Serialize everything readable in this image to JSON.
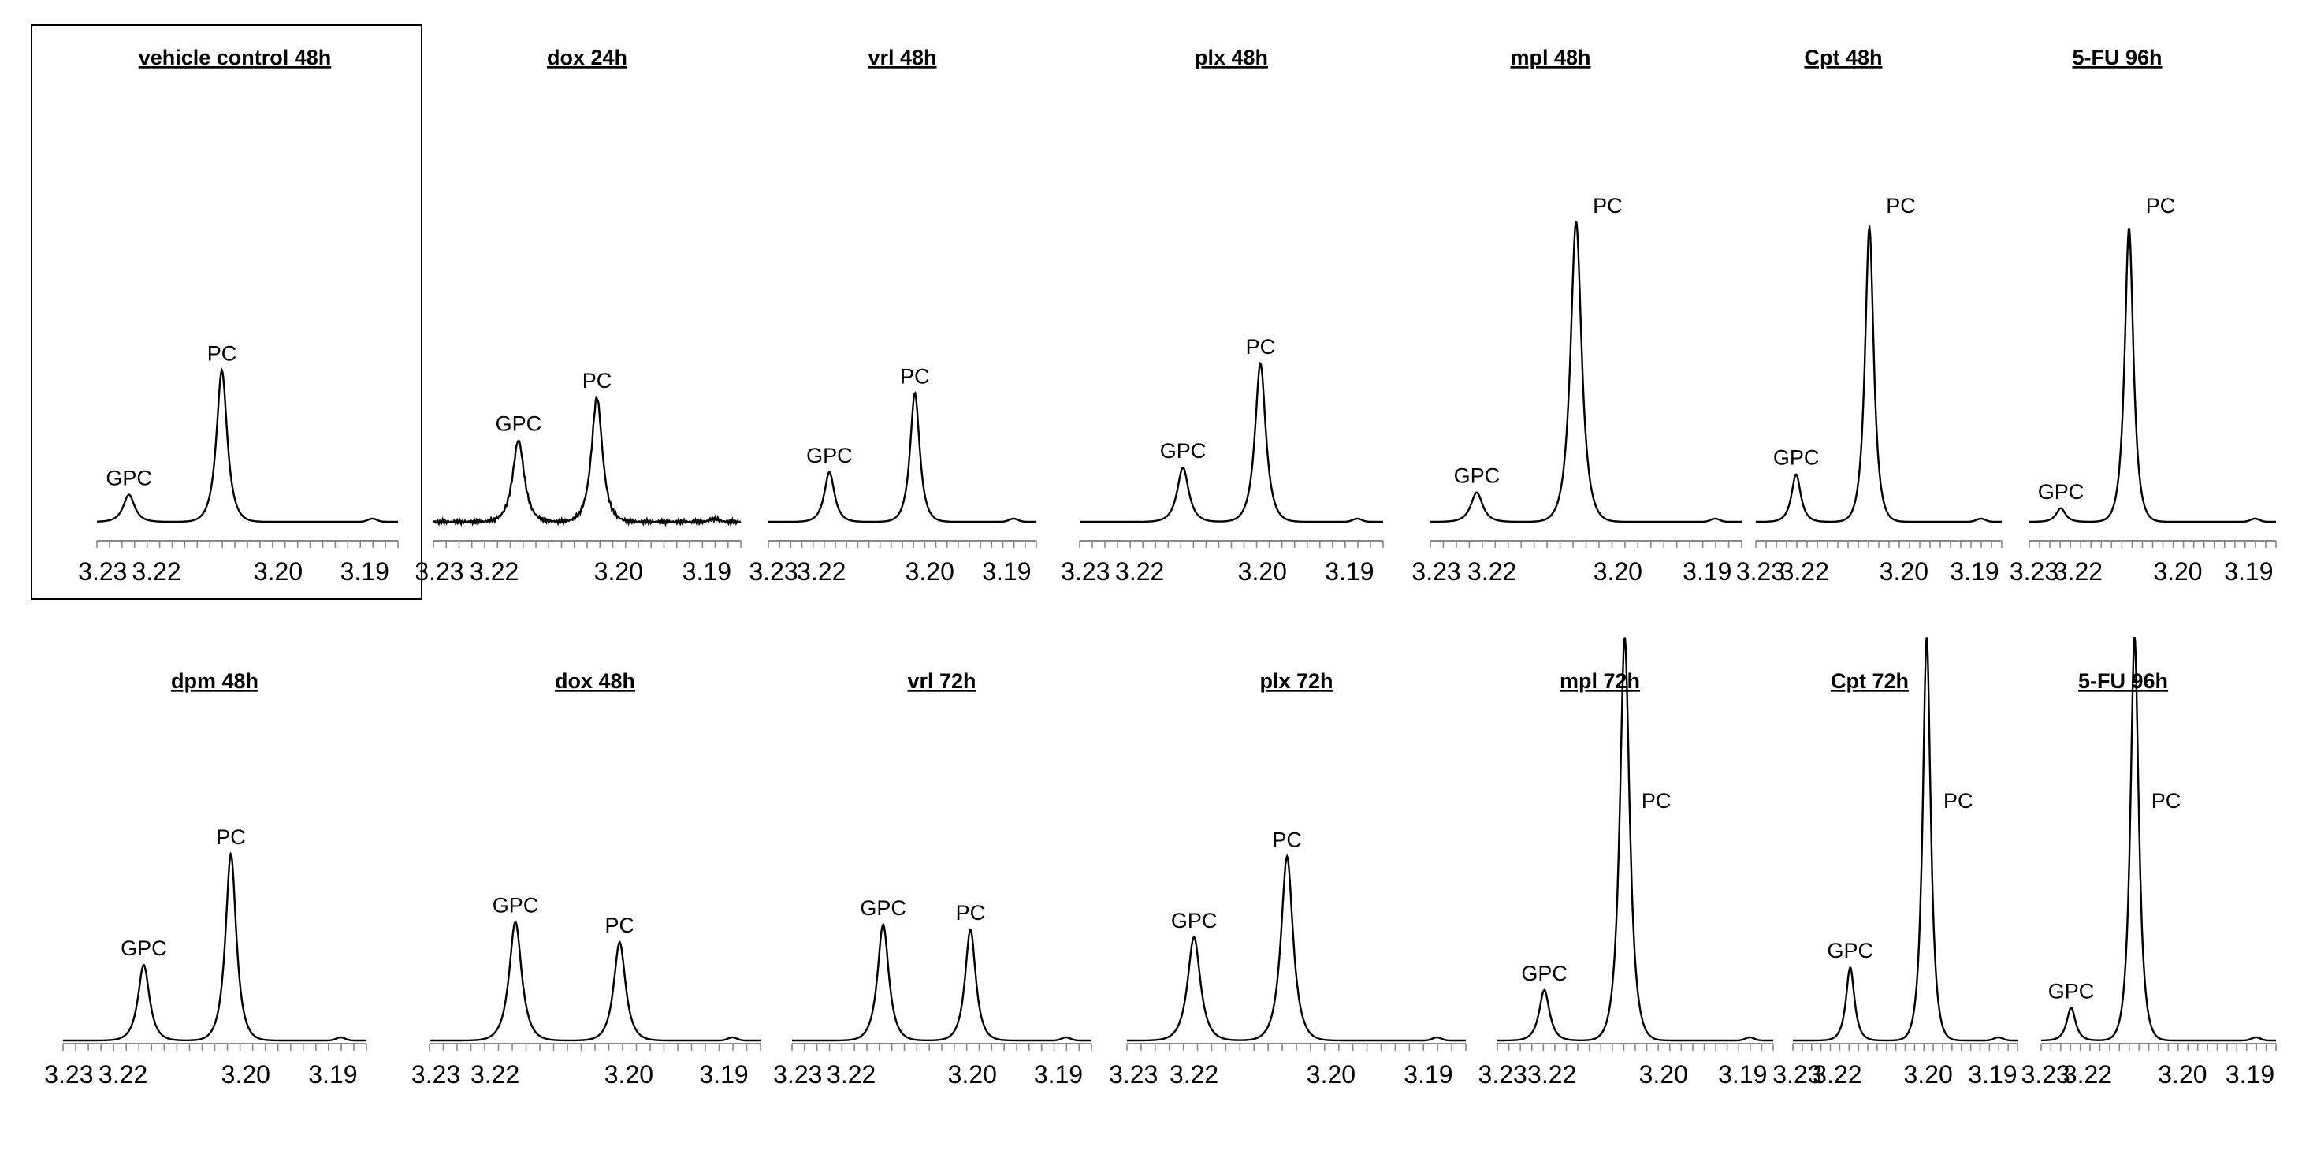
{
  "chart_data": [
    {
      "type": "line",
      "title": "vehicle control 48h",
      "row": 0,
      "col": 0,
      "boxed": true,
      "x_ticks": [
        "3.23",
        "3.22",
        "3.20",
        "3.19"
      ],
      "peaks": [
        {
          "label": "GPC",
          "ppm": 3.2255,
          "height": 0.12
        },
        {
          "label": "PC",
          "ppm": 3.211,
          "height": 0.67
        }
      ],
      "ymax": 1.0
    },
    {
      "type": "line",
      "title": "dox 24h",
      "row": 0,
      "col": 1,
      "x_ticks": [
        "3.23",
        "3.22",
        "3.20",
        "3.19"
      ],
      "peaks": [
        {
          "label": "GPC",
          "ppm": 3.2175,
          "height": 0.36
        },
        {
          "label": "PC",
          "ppm": 3.2055,
          "height": 0.55
        }
      ],
      "ymax": 1.0,
      "noisy": true
    },
    {
      "type": "line",
      "title": "vrl 48h",
      "row": 0,
      "col": 2,
      "x_ticks": [
        "3.23",
        "3.22",
        "3.20",
        "3.19"
      ],
      "peaks": [
        {
          "label": "GPC",
          "ppm": 3.2198,
          "height": 0.22
        },
        {
          "label": "PC",
          "ppm": 3.2048,
          "height": 0.57
        }
      ],
      "ymax": 1.0
    },
    {
      "type": "line",
      "title": "plx 48h",
      "row": 0,
      "col": 3,
      "x_ticks": [
        "3.23",
        "3.22",
        "3.20",
        "3.19"
      ],
      "peaks": [
        {
          "label": "GPC",
          "ppm": 3.2145,
          "height": 0.24
        },
        {
          "label": "PC",
          "ppm": 3.2025,
          "height": 0.7
        }
      ],
      "ymax": 1.0
    },
    {
      "type": "line",
      "title": "mpl 48h",
      "row": 0,
      "col": 4,
      "x_ticks": [
        "3.23",
        "3.22",
        "3.20",
        "3.19"
      ],
      "peaks": [
        {
          "label": "GPC",
          "ppm": 3.2235,
          "height": 0.13
        },
        {
          "label": "PC",
          "ppm": 3.2085,
          "height": 1.33
        }
      ],
      "ymax": 1.0
    },
    {
      "type": "line",
      "title": "Cpt 48h",
      "row": 0,
      "col": 5,
      "x_ticks": [
        "3.23",
        "3.22",
        "3.20",
        "3.19"
      ],
      "peaks": [
        {
          "label": "GPC",
          "ppm": 3.2228,
          "height": 0.21
        },
        {
          "label": "PC",
          "ppm": 3.2088,
          "height": 1.3
        }
      ],
      "ymax": 1.0
    },
    {
      "type": "line",
      "title": "5-FU 96h",
      "row": 0,
      "col": 6,
      "x_ticks": [
        "3.23",
        "3.22",
        "3.20",
        "3.19"
      ],
      "peaks": [
        {
          "label": "GPC",
          "ppm": 3.2245,
          "height": 0.06
        },
        {
          "label": "PC",
          "ppm": 3.2115,
          "height": 1.3
        }
      ],
      "ymax": 1.0
    },
    {
      "type": "line",
      "title": "dpm 48h",
      "row": 1,
      "col": 0,
      "x_ticks": [
        "3.23",
        "3.22",
        "3.20",
        "3.19"
      ],
      "peaks": [
        {
          "label": "GPC",
          "ppm": 3.218,
          "height": 0.3
        },
        {
          "label": "PC",
          "ppm": 3.2045,
          "height": 0.74
        }
      ],
      "ymax": 1.0
    },
    {
      "type": "line",
      "title": "dox 48h",
      "row": 1,
      "col": 1,
      "x_ticks": [
        "3.23",
        "3.22",
        "3.20",
        "3.19"
      ],
      "peaks": [
        {
          "label": "GPC",
          "ppm": 3.2183,
          "height": 0.47
        },
        {
          "label": "PC",
          "ppm": 3.2035,
          "height": 0.39
        }
      ],
      "ymax": 1.0
    },
    {
      "type": "line",
      "title": "vrl 72h",
      "row": 1,
      "col": 2,
      "x_ticks": [
        "3.23",
        "3.22",
        "3.20",
        "3.19"
      ],
      "peaks": [
        {
          "label": "GPC",
          "ppm": 3.2162,
          "height": 0.46
        },
        {
          "label": "PC",
          "ppm": 3.2025,
          "height": 0.44
        }
      ],
      "ymax": 1.0
    },
    {
      "type": "line",
      "title": "plx 72h",
      "row": 1,
      "col": 3,
      "x_ticks": [
        "3.23",
        "3.22",
        "3.20",
        "3.19"
      ],
      "peaks": [
        {
          "label": "GPC",
          "ppm": 3.2212,
          "height": 0.41
        },
        {
          "label": "PC",
          "ppm": 3.2083,
          "height": 0.73
        }
      ],
      "ymax": 1.0
    },
    {
      "type": "line",
      "title": "mpl 72h",
      "row": 1,
      "col": 4,
      "x_ticks": [
        "3.23",
        "3.22",
        "3.20",
        "3.19"
      ],
      "peaks": [
        {
          "label": "GPC",
          "ppm": 3.2225,
          "height": 0.2
        },
        {
          "label": "PC",
          "ppm": 3.2088,
          "height": 1.6
        }
      ],
      "ymax": 1.0
    },
    {
      "type": "line",
      "title": "Cpt 72h",
      "row": 1,
      "col": 5,
      "x_ticks": [
        "3.23",
        "3.22",
        "3.20",
        "3.19"
      ],
      "peaks": [
        {
          "label": "GPC",
          "ppm": 3.2185,
          "height": 0.29
        },
        {
          "label": "PC",
          "ppm": 3.2025,
          "height": 1.6
        }
      ],
      "ymax": 1.0
    },
    {
      "type": "line",
      "title": "5-FU 96h",
      "row": 1,
      "col": 6,
      "x_ticks": [
        "3.23",
        "3.22",
        "3.20",
        "3.19"
      ],
      "peaks": [
        {
          "label": "GPC",
          "ppm": 3.2245,
          "height": 0.13
        },
        {
          "label": "PC",
          "ppm": 3.2118,
          "height": 1.6
        }
      ],
      "ymax": 1.0
    }
  ]
}
